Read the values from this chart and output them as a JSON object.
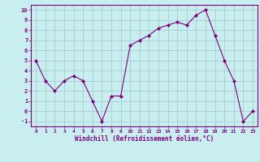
{
  "x": [
    0,
    1,
    2,
    3,
    4,
    5,
    6,
    7,
    8,
    9,
    10,
    11,
    12,
    13,
    14,
    15,
    16,
    17,
    18,
    19,
    20,
    21,
    22,
    23
  ],
  "y": [
    5,
    3,
    2,
    3,
    3.5,
    3,
    1,
    -1,
    1.5,
    1.5,
    6.5,
    7,
    7.5,
    8.2,
    8.5,
    8.8,
    8.5,
    9.5,
    10,
    7.5,
    5,
    3,
    -1,
    0
  ],
  "line_color": "#800080",
  "marker": "D",
  "marker_size": 2,
  "bg_color": "#c8eef0",
  "grid_color": "#a0c8c8",
  "xlabel": "Windchill (Refroidissement éolien,°C)",
  "xlabel_color": "#800080",
  "tick_color": "#800080",
  "spine_color": "#800080",
  "ylim": [
    -1.5,
    10.5
  ],
  "xlim": [
    -0.5,
    23.5
  ],
  "yticks": [
    -1,
    0,
    1,
    2,
    3,
    4,
    5,
    6,
    7,
    8,
    9,
    10
  ],
  "xticks": [
    0,
    1,
    2,
    3,
    4,
    5,
    6,
    7,
    8,
    9,
    10,
    11,
    12,
    13,
    14,
    15,
    16,
    17,
    18,
    19,
    20,
    21,
    22,
    23
  ]
}
